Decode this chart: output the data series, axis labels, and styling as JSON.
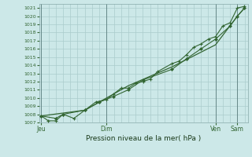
{
  "title": "Pression niveau de la mer( hPa )",
  "bg_color": "#cce8e8",
  "grid_color": "#aacccc",
  "line_color": "#336633",
  "ylim": [
    1007,
    1021.5
  ],
  "yticks": [
    1007,
    1008,
    1009,
    1010,
    1011,
    1012,
    1013,
    1014,
    1015,
    1016,
    1017,
    1018,
    1019,
    1020,
    1021
  ],
  "xtick_labels": [
    "Jeu",
    "Dim",
    "Ven",
    "Sam"
  ],
  "xtick_days": [
    0,
    3,
    8,
    9
  ],
  "vline_days": [
    0,
    3,
    8,
    9
  ],
  "series1_x": [
    0,
    0.33,
    0.67,
    1.0,
    1.5,
    2.0,
    2.5,
    3.0,
    3.33,
    3.67,
    4.0,
    4.33,
    4.67,
    5.0,
    5.33,
    6.0,
    6.33,
    6.67,
    7.0,
    7.33,
    7.67,
    8.0,
    8.33,
    8.67,
    9.0,
    9.33
  ],
  "series1_y": [
    1007.8,
    1007.2,
    1007.2,
    1008.0,
    1007.5,
    1008.5,
    1009.5,
    1009.8,
    1010.5,
    1011.2,
    1011.2,
    1011.8,
    1012.0,
    1012.3,
    1013.2,
    1014.2,
    1014.5,
    1015.3,
    1016.2,
    1016.6,
    1017.2,
    1017.5,
    1018.8,
    1019.2,
    1021.0,
    1021.2
  ],
  "series2_x": [
    0,
    0.67,
    1.0,
    2.0,
    2.67,
    3.33,
    4.0,
    4.67,
    6.0,
    6.67,
    7.33,
    8.0,
    8.67,
    9.0,
    9.33
  ],
  "series2_y": [
    1007.8,
    1007.5,
    1008.0,
    1008.5,
    1009.5,
    1010.2,
    1011.0,
    1012.2,
    1013.5,
    1014.8,
    1016.0,
    1017.2,
    1018.8,
    1020.0,
    1021.0
  ],
  "series3_x": [
    0,
    2.0,
    4.0,
    6.0,
    8.0,
    9.0,
    9.33
  ],
  "series3_y": [
    1007.8,
    1008.5,
    1011.5,
    1013.8,
    1016.5,
    1020.0,
    1021.0
  ]
}
